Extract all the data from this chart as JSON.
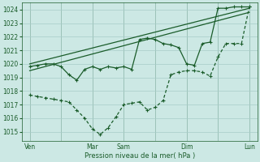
{
  "xlabel": "Pression niveau de la mer( hPa )",
  "ylim": [
    1014.3,
    1024.5
  ],
  "yticks": [
    1015,
    1016,
    1017,
    1018,
    1019,
    1020,
    1021,
    1022,
    1023,
    1024
  ],
  "background_color": "#cce8e4",
  "grid_color": "#a8ccc8",
  "line_color": "#1a5c2a",
  "xtick_labels": [
    "Ven",
    "",
    "Mar",
    "Sam",
    "",
    "Dim",
    "",
    "Lun"
  ],
  "xtick_positions": [
    0,
    4,
    8,
    12,
    16,
    20,
    24,
    28
  ],
  "xlim": [
    -1,
    29
  ],
  "trend1_x": [
    0,
    28
  ],
  "trend1_y": [
    1020.0,
    1024.1
  ],
  "trend2_x": [
    0,
    28
  ],
  "trend2_y": [
    1019.5,
    1023.8
  ],
  "forecast_x": [
    0,
    1,
    2,
    3,
    4,
    5,
    6,
    7,
    8,
    9,
    10,
    11,
    12,
    13,
    14,
    15,
    16,
    17,
    18,
    19,
    20,
    21,
    22,
    23,
    24,
    25,
    26,
    27,
    28
  ],
  "forecast_y": [
    1019.8,
    1019.9,
    1020.0,
    1020.0,
    1019.8,
    1019.2,
    1018.8,
    1019.6,
    1019.8,
    1019.6,
    1019.8,
    1019.7,
    1019.8,
    1019.6,
    1021.8,
    1021.9,
    1021.8,
    1021.5,
    1021.4,
    1021.2,
    1020.0,
    1019.9,
    1021.5,
    1021.6,
    1024.1,
    1024.1,
    1024.2,
    1024.2,
    1024.2
  ],
  "lower_x": [
    0,
    1,
    2,
    3,
    4,
    5,
    6,
    7,
    8,
    9,
    10,
    11,
    12,
    13,
    14,
    15,
    16,
    17,
    18,
    19,
    20,
    21,
    22,
    23,
    24,
    25,
    26,
    27,
    28
  ],
  "lower_y": [
    1017.7,
    1017.6,
    1017.5,
    1017.4,
    1017.3,
    1017.2,
    1016.6,
    1016.0,
    1015.2,
    1014.8,
    1015.3,
    1016.1,
    1017.0,
    1017.1,
    1017.2,
    1016.6,
    1016.8,
    1017.3,
    1019.2,
    1019.4,
    1019.5,
    1019.5,
    1019.4,
    1019.1,
    1020.5,
    1021.5,
    1021.5,
    1021.5,
    1024.2
  ]
}
